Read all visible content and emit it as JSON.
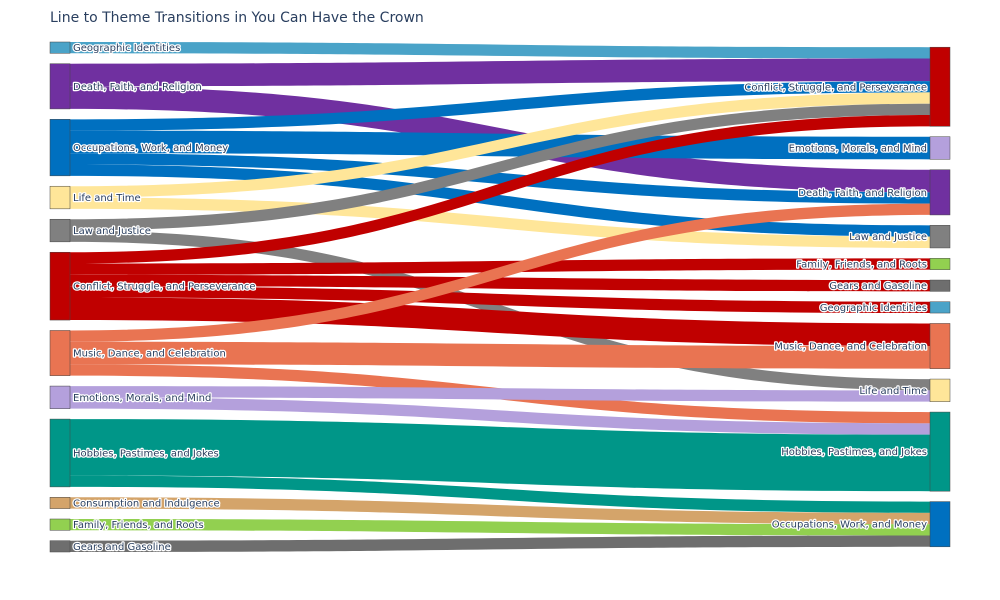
{
  "chart_data": {
    "type": "sankey",
    "title": "Line to Theme Transitions in You Can Have the Crown",
    "source_nodes": [
      {
        "name": "Geographic Identities",
        "color": "#4aa3c8"
      },
      {
        "name": "Death, Faith, and Religion",
        "color": "#7030a0"
      },
      {
        "name": "Occupations, Work, and Money",
        "color": "#0070c0"
      },
      {
        "name": "Life and Time",
        "color": "#ffe699"
      },
      {
        "name": "Law and Justice",
        "color": "#808080"
      },
      {
        "name": "Conflict, Struggle, and Perseverance",
        "color": "#c00000"
      },
      {
        "name": "Music, Dance, and Celebration",
        "color": "#e97452"
      },
      {
        "name": "Emotions, Morals, and Mind",
        "color": "#b4a0dc"
      },
      {
        "name": "Hobbies, Pastimes, and Jokes",
        "color": "#009688"
      },
      {
        "name": "Consumption and Indulgence",
        "color": "#d4a46a"
      },
      {
        "name": "Family, Friends, and Roots",
        "color": "#92d050"
      },
      {
        "name": "Gears and Gasoline",
        "color": "#6e6e6e"
      }
    ],
    "target_nodes": [
      {
        "name": "Conflict, Struggle, and Perseverance",
        "color": "#c00000"
      },
      {
        "name": "Emotions, Morals, and Mind",
        "color": "#b4a0dc"
      },
      {
        "name": "Death, Faith, and Religion",
        "color": "#7030a0"
      },
      {
        "name": "Law and Justice",
        "color": "#808080"
      },
      {
        "name": "Family, Friends, and Roots",
        "color": "#92d050"
      },
      {
        "name": "Gears and Gasoline",
        "color": "#6e6e6e"
      },
      {
        "name": "Geographic Identities",
        "color": "#4aa3c8"
      },
      {
        "name": "Music, Dance, and Celebration",
        "color": "#e97452"
      },
      {
        "name": "Life and Time",
        "color": "#ffe699"
      },
      {
        "name": "Hobbies, Pastimes, and Jokes",
        "color": "#009688"
      },
      {
        "name": "Occupations, Work, and Money",
        "color": "#0070c0"
      }
    ],
    "links": [
      {
        "source": "Geographic Identities",
        "target": "Conflict, Struggle, and Perseverance",
        "value": 1
      },
      {
        "source": "Death, Faith, and Religion",
        "target": "Conflict, Struggle, and Perseverance",
        "value": 2
      },
      {
        "source": "Death, Faith, and Religion",
        "target": "Death, Faith, and Religion",
        "value": 2
      },
      {
        "source": "Occupations, Work, and Money",
        "target": "Conflict, Struggle, and Perseverance",
        "value": 1
      },
      {
        "source": "Occupations, Work, and Money",
        "target": "Emotions, Morals, and Mind",
        "value": 2
      },
      {
        "source": "Occupations, Work, and Money",
        "target": "Death, Faith, and Religion",
        "value": 1
      },
      {
        "source": "Occupations, Work, and Money",
        "target": "Law and Justice",
        "value": 1
      },
      {
        "source": "Life and Time",
        "target": "Conflict, Struggle, and Perseverance",
        "value": 1
      },
      {
        "source": "Life and Time",
        "target": "Law and Justice",
        "value": 1
      },
      {
        "source": "Law and Justice",
        "target": "Conflict, Struggle, and Perseverance",
        "value": 1
      },
      {
        "source": "Law and Justice",
        "target": "Life and Time",
        "value": 1
      },
      {
        "source": "Conflict, Struggle, and Perseverance",
        "target": "Conflict, Struggle, and Perseverance",
        "value": 1
      },
      {
        "source": "Conflict, Struggle, and Perseverance",
        "target": "Family, Friends, and Roots",
        "value": 1
      },
      {
        "source": "Conflict, Struggle, and Perseverance",
        "target": "Gears and Gasoline",
        "value": 1
      },
      {
        "source": "Conflict, Struggle, and Perseverance",
        "target": "Geographic Identities",
        "value": 1
      },
      {
        "source": "Conflict, Struggle, and Perseverance",
        "target": "Music, Dance, and Celebration",
        "value": 2
      },
      {
        "source": "Music, Dance, and Celebration",
        "target": "Death, Faith, and Religion",
        "value": 1
      },
      {
        "source": "Music, Dance, and Celebration",
        "target": "Music, Dance, and Celebration",
        "value": 2
      },
      {
        "source": "Music, Dance, and Celebration",
        "target": "Hobbies, Pastimes, and Jokes",
        "value": 1
      },
      {
        "source": "Emotions, Morals, and Mind",
        "target": "Life and Time",
        "value": 1
      },
      {
        "source": "Emotions, Morals, and Mind",
        "target": "Hobbies, Pastimes, and Jokes",
        "value": 1
      },
      {
        "source": "Hobbies, Pastimes, and Jokes",
        "target": "Hobbies, Pastimes, and Jokes",
        "value": 5
      },
      {
        "source": "Hobbies, Pastimes, and Jokes",
        "target": "Occupations, Work, and Money",
        "value": 1
      },
      {
        "source": "Consumption and Indulgence",
        "target": "Occupations, Work, and Money",
        "value": 1
      },
      {
        "source": "Family, Friends, and Roots",
        "target": "Occupations, Work, and Money",
        "value": 1
      },
      {
        "source": "Gears and Gasoline",
        "target": "Occupations, Work, and Money",
        "value": 1
      }
    ]
  }
}
